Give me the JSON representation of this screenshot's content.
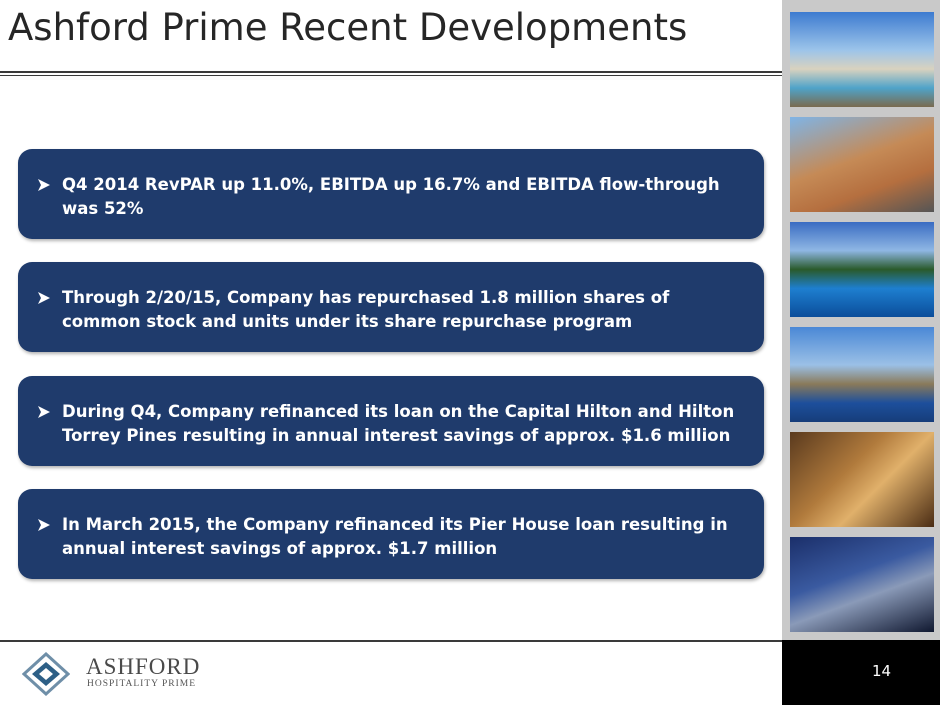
{
  "header": {
    "title": "Ashford Prime Recent Developments"
  },
  "bullets": [
    "Q4 2014 RevPAR up 11.0%, EBITDA up 16.7% and EBITDA flow-through was 52%",
    "Through 2/20/15, Company has repurchased 1.8 million shares of common stock and units under its share repurchase program",
    "During Q4, Company refinanced its loan on the Capital Hilton and Hilton Torrey Pines resulting in annual interest savings of approx. $1.6 million",
    "In March 2015, the Company refinanced its Pier House loan resulting in annual interest savings of approx. $1.7 million"
  ],
  "footer": {
    "logo_name": "ASHFORD",
    "logo_subtitle": "HOSPITALITY PRIME",
    "page_number": "14"
  }
}
